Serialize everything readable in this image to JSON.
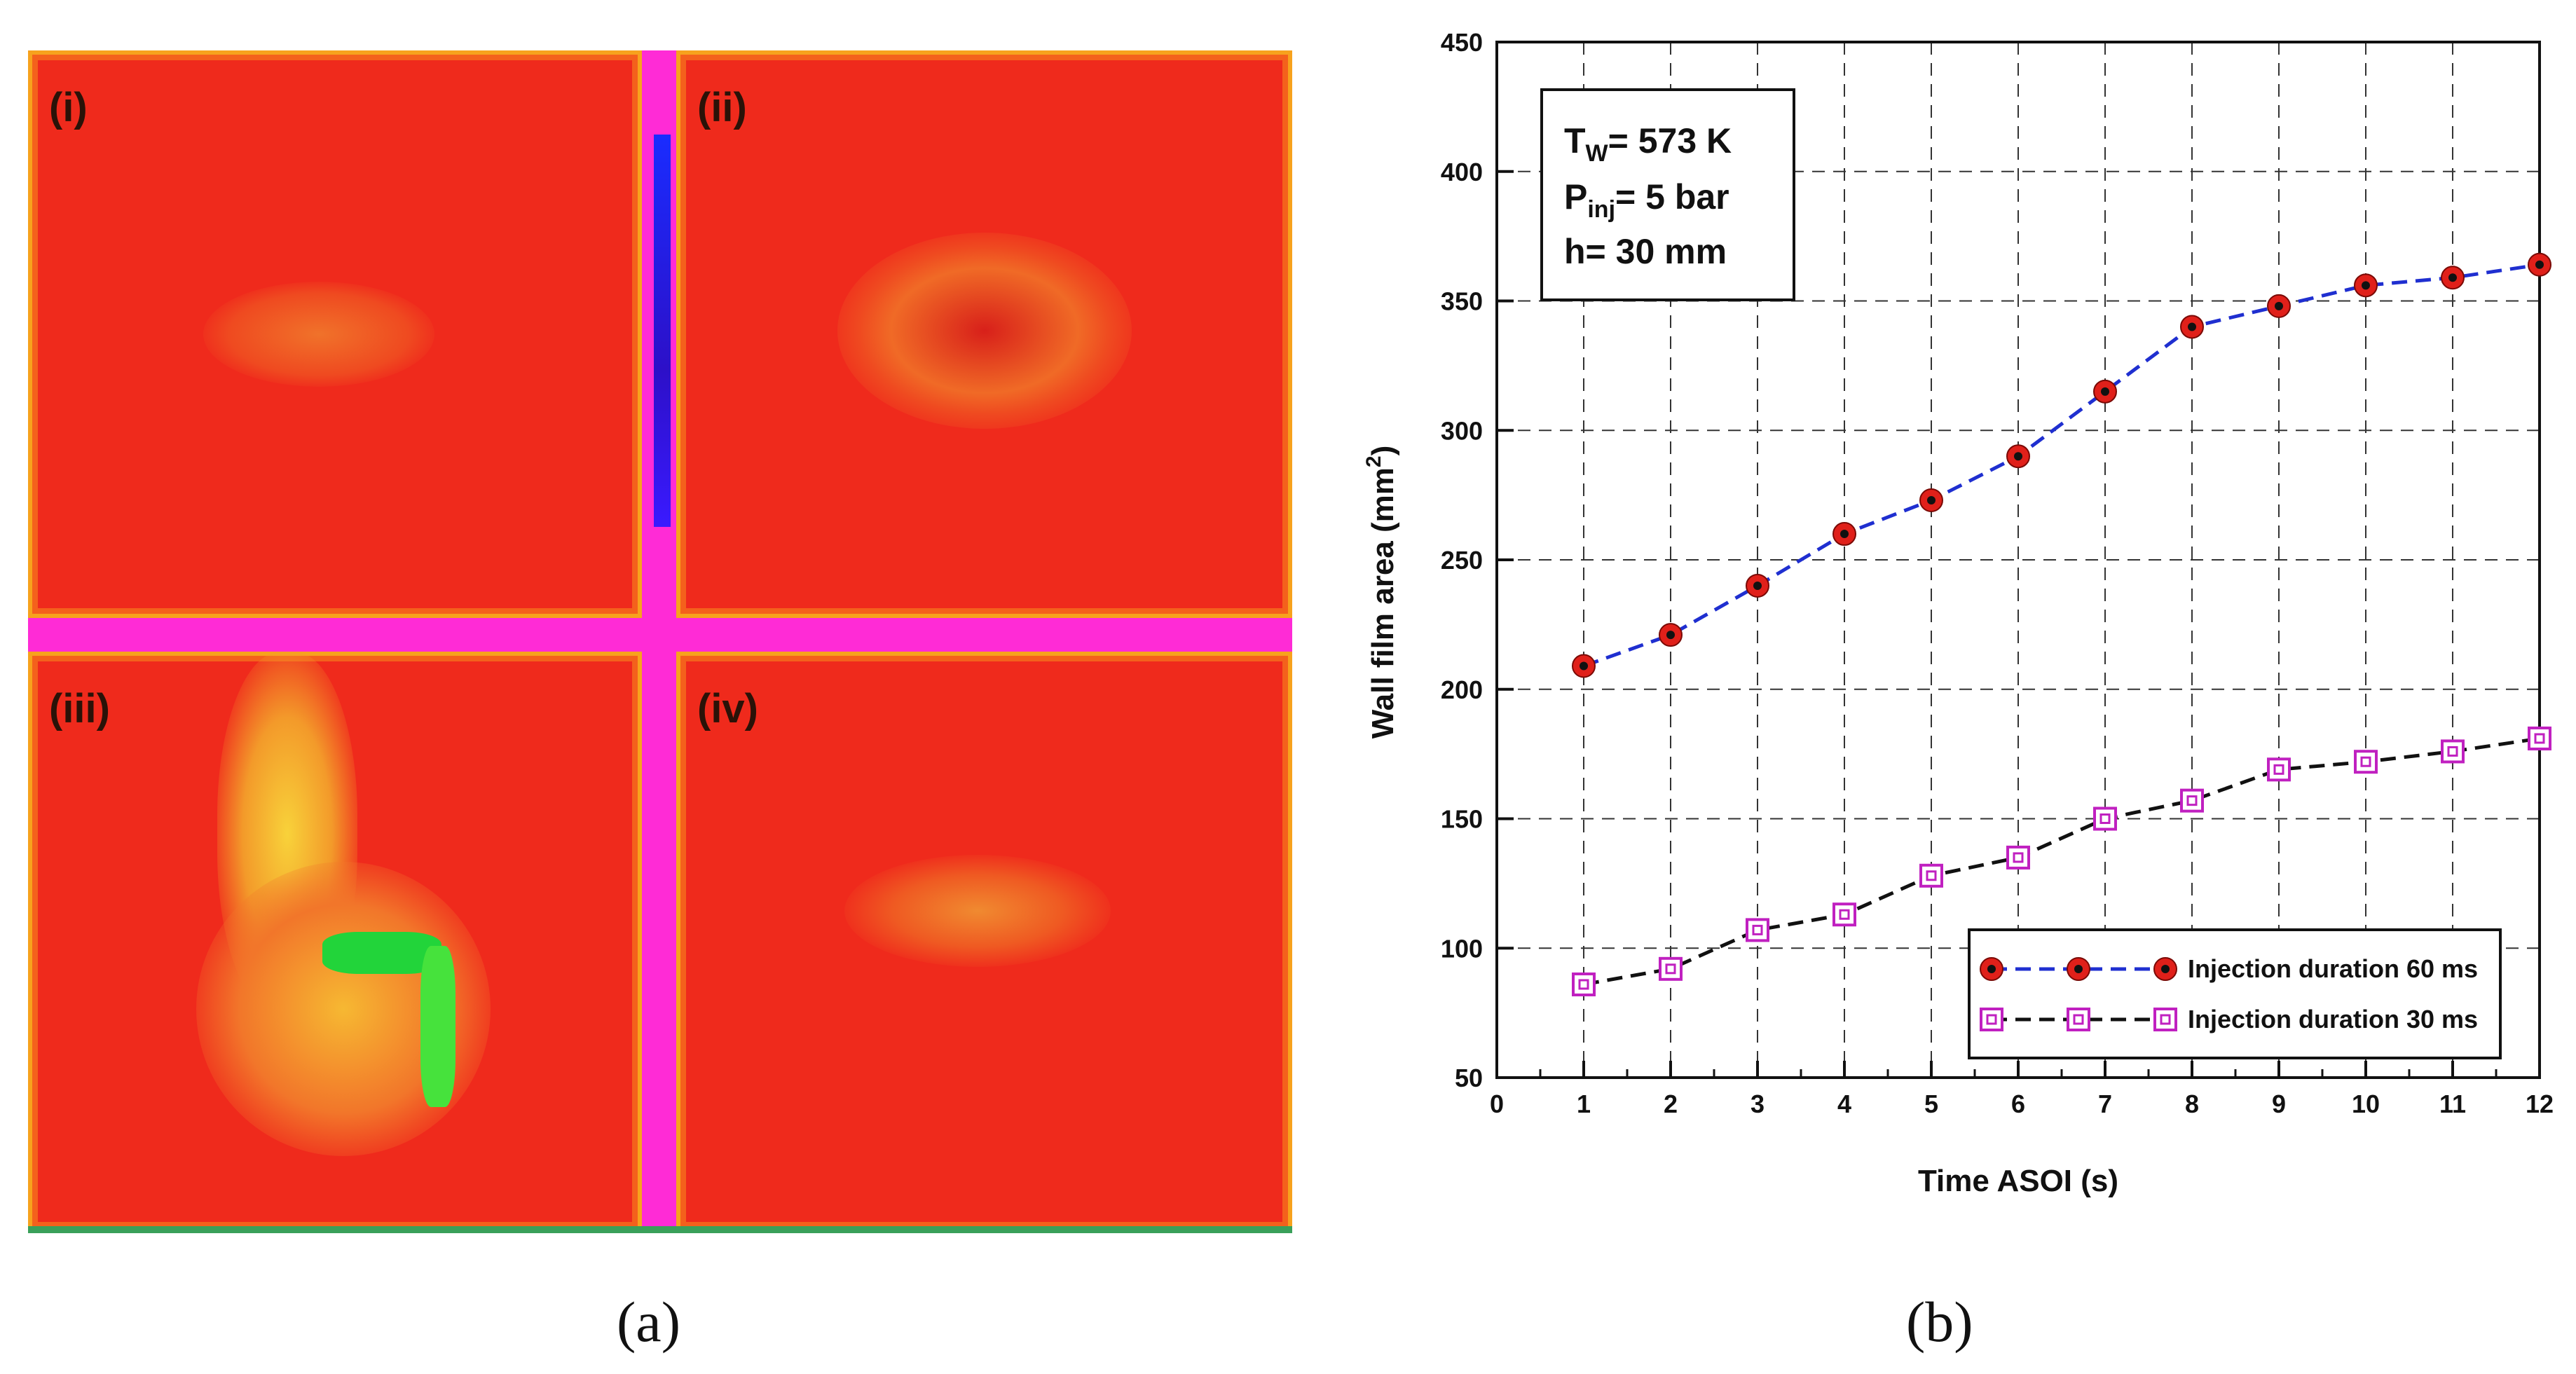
{
  "panel_a": {
    "caption": "(a)",
    "quadrants": [
      {
        "label": "(i)"
      },
      {
        "label": "(ii)"
      },
      {
        "label": "(iii)"
      },
      {
        "label": "(iv)"
      }
    ]
  },
  "panel_b": {
    "caption": "(b)",
    "annotation": {
      "line1_main": "T",
      "line1_sub": "W",
      "line1_rest": "= 573 K",
      "line2_main": "P",
      "line2_sub": "inj",
      "line2_rest": "= 5 bar",
      "line3": "h= 30 mm"
    }
  },
  "colors": {
    "series_60": "#1f2fd0",
    "series_30": "#111111",
    "marker_60": "#e0201a",
    "marker_30": "#c020c0",
    "thermal_bg": "#ef2a1c"
  },
  "chart_data": {
    "type": "line",
    "title": "",
    "xlabel": "Time ASOI (s)",
    "ylabel_main": "Wall film area (mm",
    "ylabel_sup": "2",
    "ylabel_end": ")",
    "xlim": [
      0,
      12
    ],
    "ylim": [
      50,
      450
    ],
    "xticks": [
      0,
      1,
      2,
      3,
      4,
      5,
      6,
      7,
      8,
      9,
      10,
      11,
      12
    ],
    "yticks": [
      50,
      100,
      150,
      200,
      250,
      300,
      350,
      400,
      450
    ],
    "grid": true,
    "legend_position": "bottom-right",
    "series": [
      {
        "name": "Injection duration 60 ms",
        "x": [
          1,
          2,
          3,
          4,
          5,
          6,
          7,
          8,
          9,
          10,
          11,
          12
        ],
        "values": [
          209,
          221,
          240,
          260,
          273,
          290,
          315,
          340,
          348,
          356,
          359,
          364
        ]
      },
      {
        "name": "Injection duration 30 ms",
        "x": [
          1,
          2,
          3,
          4,
          5,
          6,
          7,
          8,
          9,
          10,
          11,
          12
        ],
        "values": [
          86,
          92,
          107,
          113,
          128,
          135,
          150,
          157,
          169,
          172,
          176,
          181
        ]
      }
    ]
  }
}
